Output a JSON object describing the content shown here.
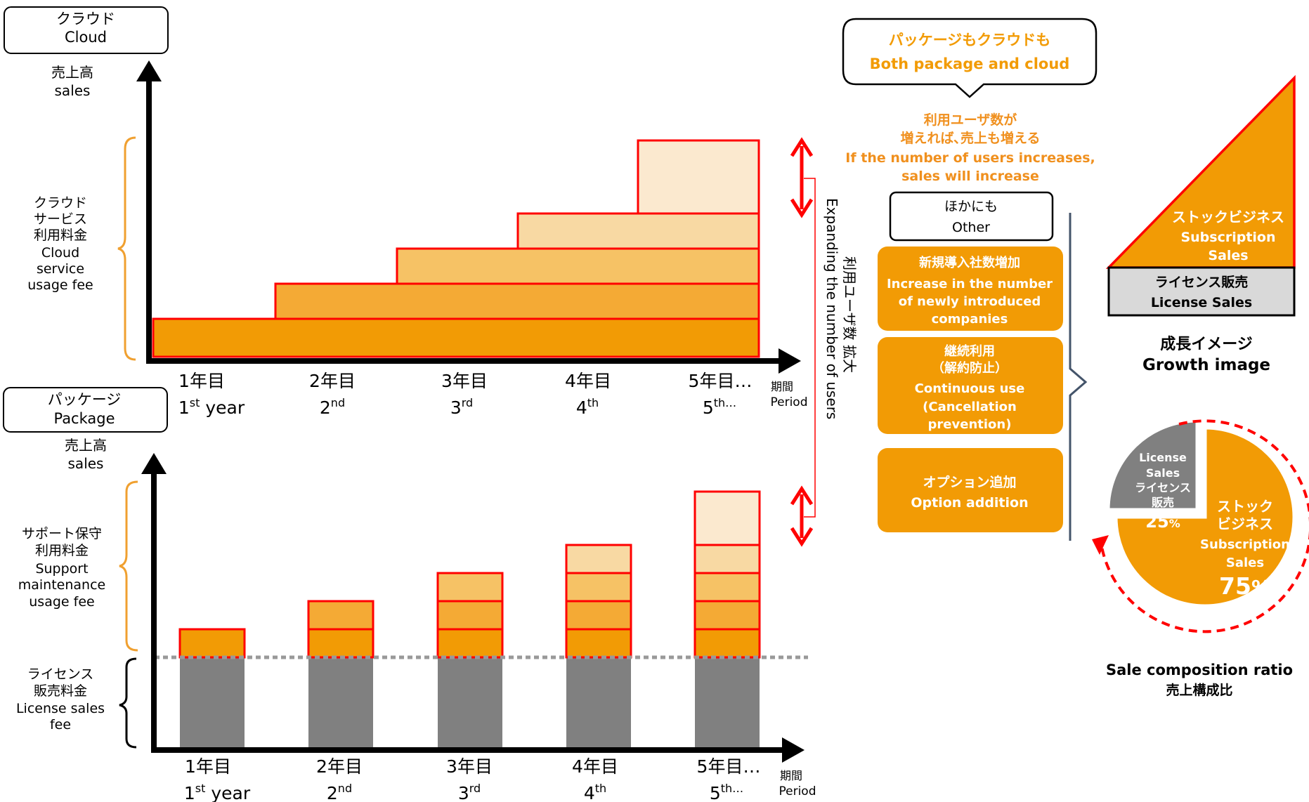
{
  "colors": {
    "orange_dark": "#F29B05",
    "orange_mid": "#F4AA35",
    "orange_light": "#F6C265",
    "orange_pale": "#F8D9A3",
    "orange_palest": "#FBE9CF",
    "red_border": "#FF0000",
    "gray": "#808080",
    "orange_text": "#F0901E",
    "brace": "#F0A030",
    "sidebar_blue": "#44546A"
  },
  "cloud_panel": {
    "title_jp": "クラウド",
    "title_en": "Cloud",
    "y_axis_jp": "売上高",
    "y_axis_en": "sales",
    "brace_label": [
      "クラウド",
      "サービス",
      "利用料金",
      "Cloud",
      "service",
      "usage fee"
    ],
    "x_axis_label_jp": "期間",
    "x_axis_label_en": "Period",
    "years": [
      {
        "jp": "1年目",
        "en": "1",
        "sup": "st",
        "suffix": " year"
      },
      {
        "jp": "2年目",
        "en": "2",
        "sup": "nd",
        "suffix": ""
      },
      {
        "jp": "3年目",
        "en": "3",
        "sup": "rd",
        "suffix": ""
      },
      {
        "jp": "4年目",
        "en": "4",
        "sup": "th",
        "suffix": ""
      },
      {
        "jp": "5年目…",
        "en": "5",
        "sup": "th…",
        "suffix": ""
      }
    ]
  },
  "package_panel": {
    "title_jp": "パッケージ",
    "title_en": "Package",
    "y_axis_jp": "売上高",
    "y_axis_en": "sales",
    "brace_support": [
      "サポート保守",
      "利用料金",
      "Support",
      "maintenance",
      "usage fee"
    ],
    "brace_license": [
      "ライセンス",
      "販売料金",
      "License sales",
      "fee"
    ],
    "x_axis_label_jp": "期間",
    "x_axis_label_en": "Period",
    "years": [
      {
        "jp": "1年目",
        "en": "1",
        "sup": "st",
        "suffix": " year"
      },
      {
        "jp": "2年目",
        "en": "2",
        "sup": "nd",
        "suffix": ""
      },
      {
        "jp": "3年目",
        "en": "3",
        "sup": "rd",
        "suffix": ""
      },
      {
        "jp": "4年目",
        "en": "4",
        "sup": "th",
        "suffix": ""
      },
      {
        "jp": "5年目…",
        "en": "5",
        "sup": "th…",
        "suffix": ""
      }
    ]
  },
  "expanding_label": {
    "jp": "利用ユーザ数 拡大",
    "en": "Expanding the number of users"
  },
  "callout": {
    "jp": "パッケージもクラウドも",
    "en": "Both package and cloud"
  },
  "users_note": [
    "利用ユーザ数が",
    "増えれば､売上も増える",
    "If the number of users increases,",
    "sales will increase"
  ],
  "other_box": {
    "jp": "ほかにも",
    "en": "Other"
  },
  "growth_items": [
    {
      "lines": [
        "新規導入社数増加",
        "Increase in the number",
        "of newly introduced",
        "companies"
      ]
    },
    {
      "lines": [
        "継続利用",
        "（解約防止）",
        "Continuous use",
        "(Cancellation",
        "prevention)"
      ]
    },
    {
      "lines": [
        "オプション追加",
        "Option addition"
      ]
    }
  ],
  "growth_image": {
    "stock_jp": "ストックビジネス",
    "stock_en1": "Subscription",
    "stock_en2": "Sales",
    "license_jp": "ライセンス販売",
    "license_en": "License Sales",
    "caption_jp": "成長イメージ",
    "caption_en": "Growth image"
  },
  "pie": {
    "license_lines": [
      "License",
      "Sales",
      "ライセンス",
      "販売"
    ],
    "license_pct": "25",
    "subscription_lines": [
      "ストック",
      "ビジネス",
      "Subscription",
      "Sales"
    ],
    "subscription_pct": "75",
    "pct_sign": "%",
    "caption_en": "Sale composition ratio",
    "caption_jp": "売上構成比"
  }
}
